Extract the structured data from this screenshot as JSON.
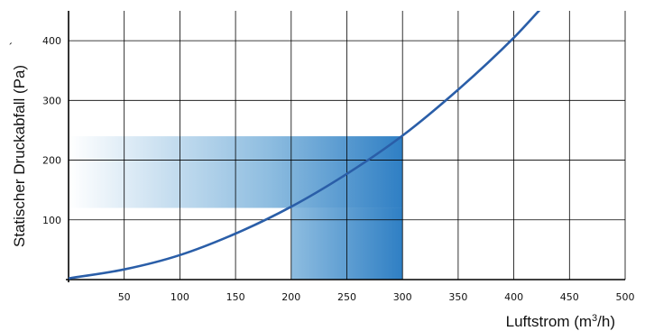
{
  "chart_data": {
    "type": "line",
    "title": "",
    "xlabel": "Luftstrom (m³/h)",
    "xlabel_parts": {
      "before": "Luftstrom (m",
      "sup": "3",
      "after": "/h)"
    },
    "ylabel": "Statischer Druckabfall (Pa)",
    "stray_mark": "´",
    "xlim": [
      0,
      500
    ],
    "ylim": [
      0,
      450
    ],
    "x_ticks": [
      50,
      100,
      150,
      200,
      250,
      300,
      350,
      400,
      450,
      500
    ],
    "y_ticks": [
      100,
      200,
      300,
      400
    ],
    "grid": true,
    "series": [
      {
        "x": [
          0,
          50,
          100,
          150,
          200,
          250,
          300,
          350,
          400,
          425
        ],
        "y": [
          2,
          17,
          41,
          77,
          122,
          177,
          241,
          318,
          405,
          455
        ]
      }
    ],
    "highlight": {
      "x_range": [
        200,
        300
      ],
      "y_range": [
        120,
        240
      ]
    },
    "colors": {
      "curve": "#2a5ea8",
      "band_dark": "#2f7fc4",
      "band_mid": "#8ebde0",
      "band_light": "#ffffff",
      "grid": "#000000"
    }
  }
}
